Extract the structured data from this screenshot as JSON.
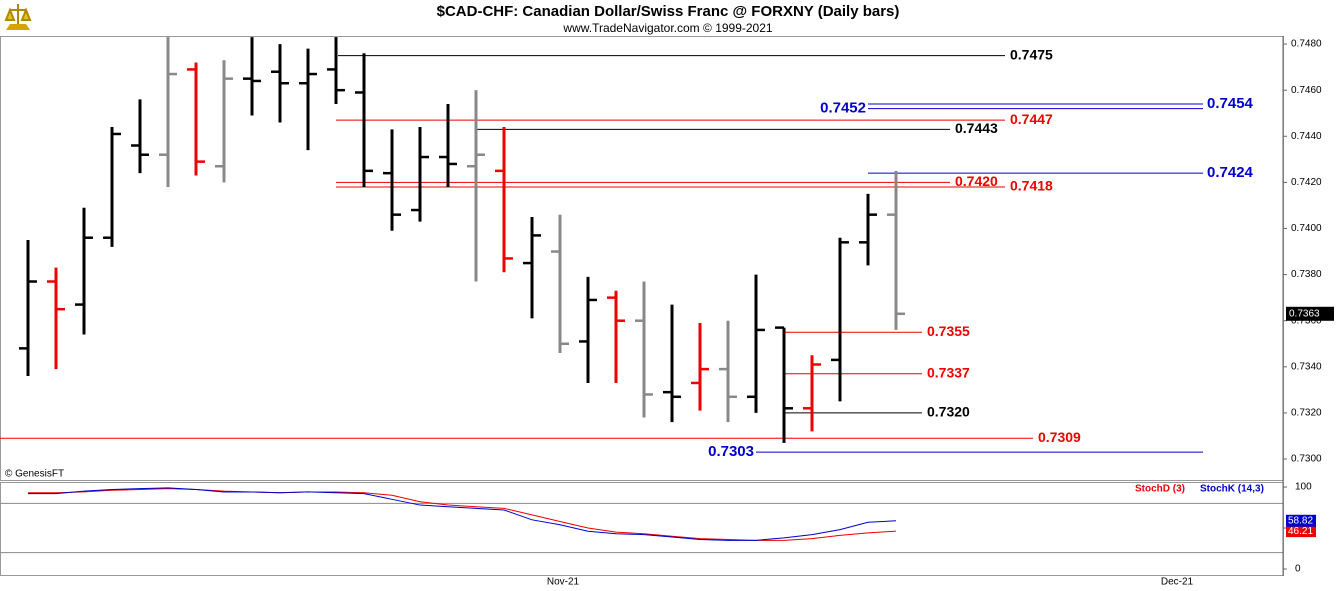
{
  "chart_data": [
    {
      "type": "ohlc",
      "title": "$CAD-CHF:  Canadian Dollar/Swiss Franc @ FORXNY  (Daily bars)",
      "subtitle": "www.TradeNavigator.com © 1999-2021",
      "annotation": "© GenesisFT",
      "open": [
        0.7348,
        0.7377,
        0.7367,
        0.7396,
        0.7436,
        0.7432,
        0.7469,
        0.7427,
        0.7465,
        0.7468,
        0.7463,
        0.7469,
        0.7459,
        0.7424,
        0.7408,
        0.7431,
        0.7427,
        0.7425,
        0.7385,
        0.739,
        0.7351,
        0.737,
        0.736,
        0.7329,
        0.7333,
        0.7339,
        0.7327,
        0.7357,
        0.7322,
        0.7343,
        0.7394,
        0.7406
      ],
      "high": [
        0.7395,
        0.7383,
        0.7409,
        0.7444,
        0.7456,
        0.7483,
        0.7472,
        0.7473,
        0.7483,
        0.748,
        0.7478,
        0.7483,
        0.7476,
        0.7443,
        0.7444,
        0.7454,
        0.746,
        0.7444,
        0.7405,
        0.7406,
        0.7379,
        0.7373,
        0.7377,
        0.7367,
        0.7359,
        0.736,
        0.738,
        0.7357,
        0.7345,
        0.7396,
        0.7415,
        0.7425
      ],
      "low": [
        0.7336,
        0.7339,
        0.7354,
        0.7392,
        0.7424,
        0.7418,
        0.7423,
        0.742,
        0.7449,
        0.7446,
        0.7434,
        0.7454,
        0.7418,
        0.7399,
        0.7403,
        0.7418,
        0.7377,
        0.7381,
        0.7361,
        0.7346,
        0.7333,
        0.7333,
        0.7318,
        0.7316,
        0.7321,
        0.7316,
        0.732,
        0.7307,
        0.7312,
        0.7325,
        0.7384,
        0.7356
      ],
      "close": [
        0.7377,
        0.7365,
        0.7396,
        0.7441,
        0.7432,
        0.7467,
        0.7429,
        0.7465,
        0.7464,
        0.7463,
        0.7467,
        0.746,
        0.7425,
        0.7406,
        0.7431,
        0.7428,
        0.7432,
        0.7387,
        0.7397,
        0.735,
        0.7369,
        0.736,
        0.7328,
        0.7327,
        0.7339,
        0.7327,
        0.7356,
        0.7322,
        0.7341,
        0.7394,
        0.7406,
        0.7363
      ],
      "colors": [
        "#000",
        "#e00",
        "#000",
        "#000",
        "#000",
        "#888",
        "#e00",
        "#888",
        "#000",
        "#000",
        "#000",
        "#000",
        "#000",
        "#000",
        "#000",
        "#000",
        "#888",
        "#e00",
        "#000",
        "#888",
        "#000",
        "#e00",
        "#888",
        "#000",
        "#e00",
        "#888",
        "#000",
        "#000",
        "#e00",
        "#000",
        "#000",
        "#888"
      ],
      "ylim": [
        0.72909,
        0.74835
      ],
      "yticks": [
        {
          "value": 0.73,
          "label": "0.7300"
        },
        {
          "value": 0.732,
          "label": "0.7320"
        },
        {
          "value": 0.734,
          "label": "0.7340"
        },
        {
          "value": 0.736,
          "label": "0.7360"
        },
        {
          "value": 0.738,
          "label": "0.7380"
        },
        {
          "value": 0.74,
          "label": "0.7400"
        },
        {
          "value": 0.742,
          "label": "0.7420"
        },
        {
          "value": 0.744,
          "label": "0.7440"
        },
        {
          "value": 0.746,
          "label": "0.7460"
        },
        {
          "value": 0.748,
          "label": "0.7480"
        }
      ],
      "levels": [
        {
          "value": 0.7475,
          "label": "0.7475",
          "color": "#000"
        },
        {
          "value": 0.7454,
          "label": "0.7454",
          "color": "#00c"
        },
        {
          "value": 0.7452,
          "label": "0.7452",
          "color": "#00c"
        },
        {
          "value": 0.7447,
          "label": "0.7447",
          "color": "#e00"
        },
        {
          "value": 0.7443,
          "label": "0.7443",
          "color": "#000"
        },
        {
          "value": 0.7424,
          "label": "0.7424",
          "color": "#00c"
        },
        {
          "value": 0.742,
          "label": "0.7420",
          "color": "#e00"
        },
        {
          "value": 0.7418,
          "label": "0.7418",
          "color": "#e00"
        },
        {
          "value": 0.7355,
          "label": "0.7355",
          "color": "#e00"
        },
        {
          "value": 0.7337,
          "label": "0.7337",
          "color": "#e00"
        },
        {
          "value": 0.732,
          "label": "0.7320",
          "color": "#000"
        },
        {
          "value": 0.7309,
          "label": "0.7309",
          "color": "#e00"
        },
        {
          "value": 0.7303,
          "label": "0.7303",
          "color": "#00c"
        }
      ]
    },
    {
      "type": "line",
      "series": [
        {
          "name": "StochD (3)",
          "color": "#e00",
          "values": [
            93,
            93,
            94,
            96,
            97,
            98,
            97,
            95,
            94,
            93,
            94,
            94,
            93,
            90,
            82,
            78,
            76,
            74,
            66,
            58,
            50,
            45,
            43,
            40,
            37,
            36,
            35,
            35,
            37,
            41,
            44,
            46.21
          ],
          "value_label": "46.21"
        },
        {
          "name": "StochK (14,3)",
          "color": "#00c",
          "values": [
            92,
            92,
            95,
            97,
            98,
            99,
            97,
            94,
            94,
            93,
            94,
            93,
            92,
            85,
            78,
            76,
            74,
            72,
            60,
            54,
            46,
            43,
            42,
            39,
            36,
            35,
            35,
            38,
            42,
            48,
            57,
            58.82
          ],
          "value_label": "58.82"
        }
      ],
      "ylim": [
        -7.3,
        104.9
      ],
      "yticks": [
        0,
        50,
        100
      ],
      "bands": [
        80,
        20
      ],
      "x_labels": [
        "Nov-21",
        "Dec-21"
      ]
    }
  ]
}
